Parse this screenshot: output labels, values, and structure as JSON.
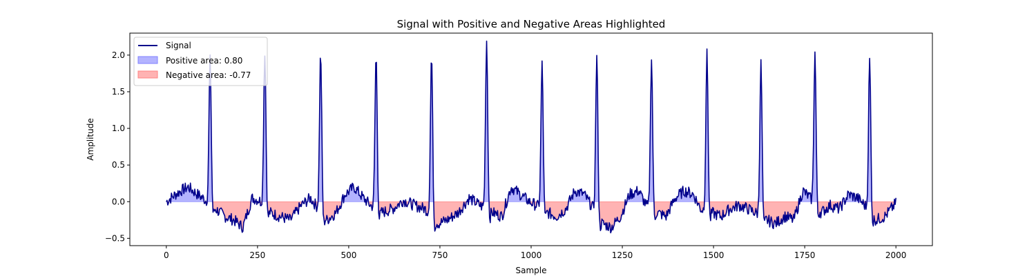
{
  "chart_data": {
    "type": "area",
    "title": "Signal with Positive and Negative Areas Highlighted",
    "xlabel": "Sample",
    "ylabel": "Amplitude",
    "xlim": [
      -100,
      2100
    ],
    "ylim": [
      -0.6,
      2.3
    ],
    "xticks": [
      0,
      250,
      500,
      750,
      1000,
      1250,
      1500,
      1750,
      2000
    ],
    "yticks": [
      -0.5,
      0.0,
      0.5,
      1.0,
      1.5,
      2.0
    ],
    "xtick_labels": [
      "0",
      "250",
      "500",
      "750",
      "1000",
      "1250",
      "1500",
      "1750",
      "2000"
    ],
    "ytick_labels": [
      "−0.5",
      "0.0",
      "0.5",
      "1.0",
      "1.5",
      "2.0"
    ],
    "grid": false,
    "legend_position": "upper-left",
    "colors": {
      "signal": "#00008b",
      "positive_fill": "#b3b3ff",
      "positive_edge": "#8080ff",
      "negative_fill": "#ffb3b3",
      "negative_edge": "#ff8080"
    },
    "series": [
      {
        "name": "Signal",
        "kind": "line"
      },
      {
        "name": "Positive area: 0.80",
        "kind": "fill-positive"
      },
      {
        "name": "Negative area: -0.77",
        "kind": "fill-negative"
      }
    ],
    "peaks": [
      {
        "x": 120,
        "y": 1.93
      },
      {
        "x": 270,
        "y": 2.05
      },
      {
        "x": 423,
        "y": 2.03
      },
      {
        "x": 575,
        "y": 2.0
      },
      {
        "x": 727,
        "y": 2.0
      },
      {
        "x": 878,
        "y": 2.2
      },
      {
        "x": 1030,
        "y": 1.87
      },
      {
        "x": 1180,
        "y": 1.97
      },
      {
        "x": 1330,
        "y": 1.96
      },
      {
        "x": 1482,
        "y": 2.01
      },
      {
        "x": 1630,
        "y": 1.88
      },
      {
        "x": 1778,
        "y": 2.03
      },
      {
        "x": 1928,
        "y": 1.94
      }
    ],
    "baseline": [
      [
        0,
        0.0
      ],
      [
        20,
        0.08
      ],
      [
        40,
        0.15
      ],
      [
        60,
        0.2
      ],
      [
        80,
        0.12
      ],
      [
        100,
        0.05
      ],
      [
        135,
        -0.1
      ],
      [
        160,
        -0.2
      ],
      [
        185,
        -0.25
      ],
      [
        210,
        -0.35
      ],
      [
        235,
        0.05
      ],
      [
        255,
        0.02
      ],
      [
        285,
        -0.15
      ],
      [
        310,
        -0.2
      ],
      [
        340,
        -0.25
      ],
      [
        370,
        -0.05
      ],
      [
        395,
        0.05
      ],
      [
        410,
        -0.05
      ],
      [
        440,
        -0.25
      ],
      [
        465,
        -0.15
      ],
      [
        490,
        0.1
      ],
      [
        515,
        0.2
      ],
      [
        540,
        0.05
      ],
      [
        560,
        -0.05
      ],
      [
        590,
        -0.15
      ],
      [
        620,
        -0.1
      ],
      [
        650,
        0.02
      ],
      [
        680,
        -0.05
      ],
      [
        710,
        -0.1
      ],
      [
        745,
        -0.3
      ],
      [
        770,
        -0.25
      ],
      [
        800,
        -0.15
      ],
      [
        830,
        0.05
      ],
      [
        860,
        -0.05
      ],
      [
        895,
        -0.15
      ],
      [
        920,
        -0.2
      ],
      [
        945,
        0.2
      ],
      [
        970,
        0.1
      ],
      [
        995,
        0.0
      ],
      [
        1015,
        -0.05
      ],
      [
        1045,
        -0.15
      ],
      [
        1070,
        -0.2
      ],
      [
        1095,
        -0.1
      ],
      [
        1120,
        0.15
      ],
      [
        1145,
        0.1
      ],
      [
        1165,
        -0.05
      ],
      [
        1195,
        -0.3
      ],
      [
        1220,
        -0.35
      ],
      [
        1245,
        -0.2
      ],
      [
        1270,
        0.1
      ],
      [
        1295,
        0.15
      ],
      [
        1315,
        -0.05
      ],
      [
        1345,
        -0.15
      ],
      [
        1370,
        -0.2
      ],
      [
        1395,
        0.05
      ],
      [
        1420,
        0.15
      ],
      [
        1445,
        0.1
      ],
      [
        1465,
        -0.1
      ],
      [
        1495,
        -0.15
      ],
      [
        1520,
        -0.2
      ],
      [
        1545,
        -0.1
      ],
      [
        1570,
        -0.05
      ],
      [
        1595,
        -0.1
      ],
      [
        1615,
        -0.15
      ],
      [
        1645,
        -0.25
      ],
      [
        1670,
        -0.3
      ],
      [
        1695,
        -0.2
      ],
      [
        1720,
        -0.25
      ],
      [
        1745,
        0.15
      ],
      [
        1765,
        0.05
      ],
      [
        1795,
        -0.15
      ],
      [
        1820,
        -0.05
      ],
      [
        1845,
        -0.1
      ],
      [
        1870,
        0.1
      ],
      [
        1895,
        0.05
      ],
      [
        1915,
        -0.05
      ],
      [
        1945,
        -0.25
      ],
      [
        1970,
        -0.2
      ],
      [
        2000,
        -0.02
      ]
    ]
  }
}
